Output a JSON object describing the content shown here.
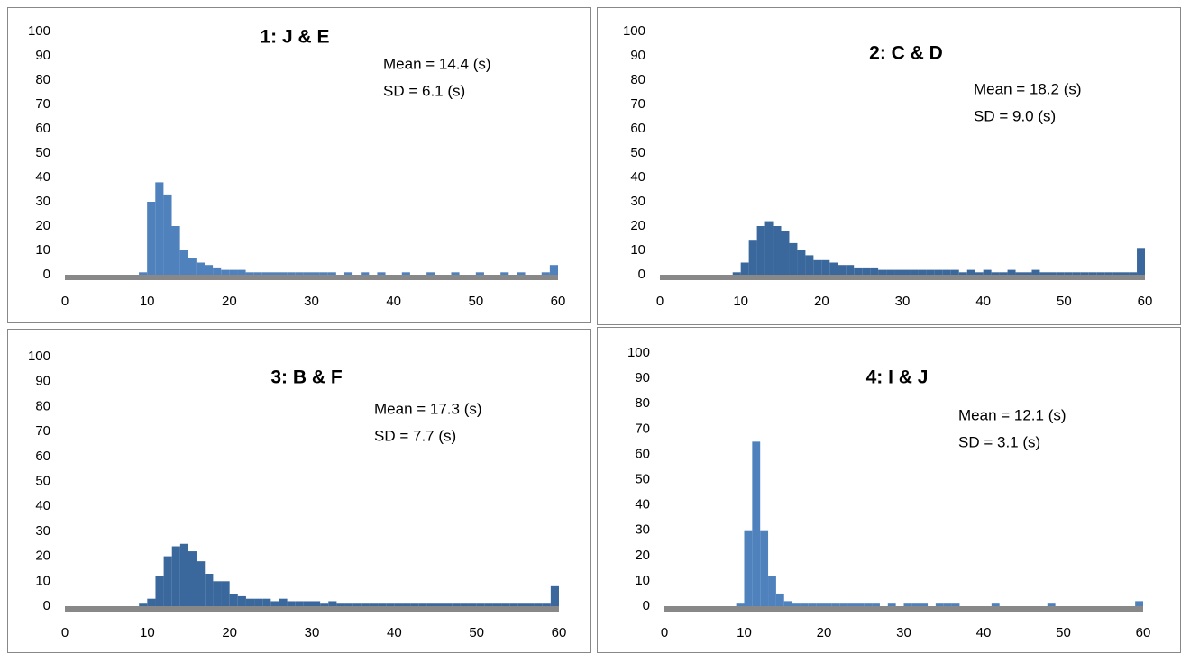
{
  "chart_data": [
    {
      "type": "histogram",
      "title": "1: J & E",
      "annotations": [
        "Mean = 14.4 (s)",
        "SD = 6.1 (s)"
      ],
      "color": "#4f81bd",
      "bins": [
        0,
        1,
        2,
        3,
        4,
        5,
        6,
        7,
        8,
        9,
        10,
        11,
        12,
        13,
        14,
        15,
        16,
        17,
        18,
        19,
        20,
        21,
        22,
        23,
        24,
        25,
        26,
        27,
        28,
        29,
        30,
        31,
        32,
        33,
        34,
        35,
        36,
        37,
        38,
        39,
        40,
        41,
        42,
        43,
        44,
        45,
        46,
        47,
        48,
        49,
        50,
        51,
        52,
        53,
        54,
        55,
        56,
        57,
        58,
        59,
        60
      ],
      "values": [
        0,
        0,
        0,
        0,
        0,
        0,
        0,
        0,
        0,
        1,
        30,
        38,
        33,
        20,
        10,
        7,
        5,
        4,
        3,
        2,
        2,
        2,
        1,
        1,
        1,
        1,
        1,
        1,
        1,
        1,
        1,
        1,
        1,
        0,
        1,
        0,
        1,
        0,
        1,
        0,
        0,
        1,
        0,
        0,
        1,
        0,
        0,
        1,
        0,
        0,
        1,
        0,
        0,
        1,
        0,
        1,
        0,
        0,
        1,
        4
      ],
      "xlim": [
        0,
        60
      ],
      "ylim": [
        0,
        100
      ],
      "xticks": [
        0,
        10,
        20,
        30,
        40,
        50,
        60
      ],
      "yticks": [
        0,
        10,
        20,
        30,
        40,
        50,
        60,
        70,
        80,
        90,
        100
      ]
    },
    {
      "type": "histogram",
      "title": "2: C & D",
      "annotations": [
        "Mean = 18.2 (s)",
        "SD = 9.0 (s)"
      ],
      "color": "#3a679c",
      "bins": [
        0,
        1,
        2,
        3,
        4,
        5,
        6,
        7,
        8,
        9,
        10,
        11,
        12,
        13,
        14,
        15,
        16,
        17,
        18,
        19,
        20,
        21,
        22,
        23,
        24,
        25,
        26,
        27,
        28,
        29,
        30,
        31,
        32,
        33,
        34,
        35,
        36,
        37,
        38,
        39,
        40,
        41,
        42,
        43,
        44,
        45,
        46,
        47,
        48,
        49,
        50,
        51,
        52,
        53,
        54,
        55,
        56,
        57,
        58,
        59,
        60
      ],
      "values": [
        0,
        0,
        0,
        0,
        0,
        0,
        0,
        0,
        0,
        1,
        5,
        14,
        20,
        22,
        20,
        18,
        13,
        10,
        8,
        6,
        6,
        5,
        4,
        4,
        3,
        3,
        3,
        2,
        2,
        2,
        2,
        2,
        2,
        2,
        2,
        2,
        2,
        1,
        2,
        1,
        2,
        1,
        1,
        2,
        1,
        1,
        2,
        1,
        1,
        1,
        1,
        1,
        1,
        1,
        1,
        1,
        1,
        1,
        1,
        11
      ],
      "xlim": [
        0,
        60
      ],
      "ylim": [
        0,
        100
      ],
      "xticks": [
        0,
        10,
        20,
        30,
        40,
        50,
        60
      ],
      "yticks": [
        0,
        10,
        20,
        30,
        40,
        50,
        60,
        70,
        80,
        90,
        100
      ]
    },
    {
      "type": "histogram",
      "title": "3: B & F",
      "annotations": [
        "Mean = 17.3 (s)",
        "SD = 7.7 (s)"
      ],
      "color": "#3a679c",
      "bins": [
        0,
        1,
        2,
        3,
        4,
        5,
        6,
        7,
        8,
        9,
        10,
        11,
        12,
        13,
        14,
        15,
        16,
        17,
        18,
        19,
        20,
        21,
        22,
        23,
        24,
        25,
        26,
        27,
        28,
        29,
        30,
        31,
        32,
        33,
        34,
        35,
        36,
        37,
        38,
        39,
        40,
        41,
        42,
        43,
        44,
        45,
        46,
        47,
        48,
        49,
        50,
        51,
        52,
        53,
        54,
        55,
        56,
        57,
        58,
        59,
        60
      ],
      "values": [
        0,
        0,
        0,
        0,
        0,
        0,
        0,
        0,
        0,
        1,
        3,
        12,
        20,
        24,
        25,
        22,
        18,
        13,
        10,
        10,
        5,
        4,
        3,
        3,
        3,
        2,
        3,
        2,
        2,
        2,
        2,
        1,
        2,
        1,
        1,
        1,
        1,
        1,
        1,
        1,
        1,
        1,
        1,
        1,
        1,
        1,
        1,
        1,
        1,
        1,
        1,
        1,
        1,
        1,
        1,
        1,
        1,
        1,
        1,
        8
      ],
      "xlim": [
        0,
        60
      ],
      "ylim": [
        0,
        100
      ],
      "xticks": [
        0,
        10,
        20,
        30,
        40,
        50,
        60
      ],
      "yticks": [
        0,
        10,
        20,
        30,
        40,
        50,
        60,
        70,
        80,
        90,
        100
      ]
    },
    {
      "type": "histogram",
      "title": "4: I & J",
      "annotations": [
        "Mean = 12.1 (s)",
        "SD = 3.1 (s)"
      ],
      "color": "#4f81bd",
      "bins": [
        0,
        1,
        2,
        3,
        4,
        5,
        6,
        7,
        8,
        9,
        10,
        11,
        12,
        13,
        14,
        15,
        16,
        17,
        18,
        19,
        20,
        21,
        22,
        23,
        24,
        25,
        26,
        27,
        28,
        29,
        30,
        31,
        32,
        33,
        34,
        35,
        36,
        37,
        38,
        39,
        40,
        41,
        42,
        43,
        44,
        45,
        46,
        47,
        48,
        49,
        50,
        51,
        52,
        53,
        54,
        55,
        56,
        57,
        58,
        59,
        60
      ],
      "values": [
        0,
        0,
        0,
        0,
        0,
        0,
        0,
        0,
        0,
        1,
        30,
        65,
        30,
        12,
        5,
        2,
        1,
        1,
        1,
        1,
        1,
        1,
        1,
        1,
        1,
        1,
        1,
        0,
        1,
        0,
        1,
        1,
        1,
        0,
        1,
        1,
        1,
        0,
        0,
        0,
        0,
        1,
        0,
        0,
        0,
        0,
        0,
        0,
        1,
        0,
        0,
        0,
        0,
        0,
        0,
        0,
        0,
        0,
        0,
        2
      ],
      "xlim": [
        0,
        60
      ],
      "ylim": [
        0,
        100
      ],
      "xticks": [
        0,
        10,
        20,
        30,
        40,
        50,
        60
      ],
      "yticks": [
        0,
        10,
        20,
        30,
        40,
        50,
        60,
        70,
        80,
        90,
        100
      ]
    }
  ]
}
